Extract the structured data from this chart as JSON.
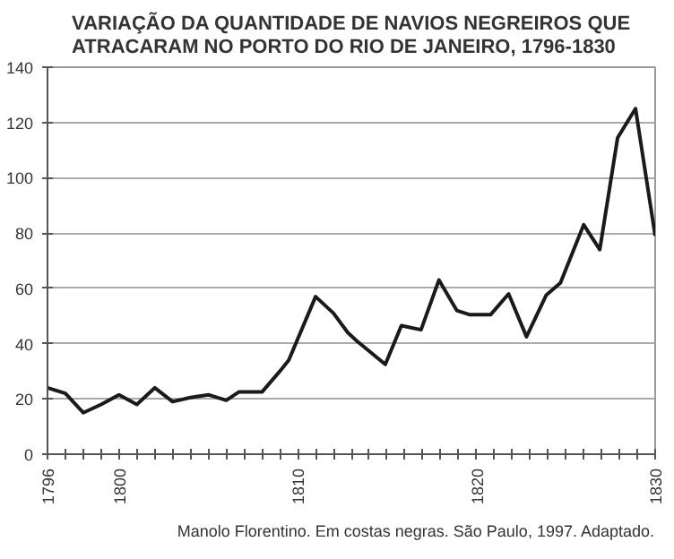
{
  "chart_data": {
    "type": "line",
    "title": "VARIAÇÃO DA QUANTIDADE DE NAVIOS NEGREIROS QUE\nATRACARAM NO PORTO DO RIO DE JANEIRO, 1796-1830",
    "x": [
      1796,
      1797,
      1798,
      1799,
      1800,
      1801,
      1802,
      1803,
      1804,
      1805,
      1806,
      1806.7,
      1808,
      1809,
      1809.5,
      1811,
      1812,
      1812.8,
      1813.3,
      1814.9,
      1815.8,
      1816.9,
      1817.9,
      1818.9,
      1819.6,
      1820.8,
      1821.8,
      1822.8,
      1823.9,
      1824.7,
      1826,
      1826.9,
      1827.9,
      1828.9,
      1830
    ],
    "series": [
      {
        "color": "#1a1a1a",
        "values": [
          24,
          22,
          15,
          18,
          21.5,
          18,
          24,
          19,
          20.5,
          21.5,
          19.5,
          22.5,
          22.5,
          30,
          34,
          57,
          51,
          44,
          41,
          32.5,
          46.5,
          45,
          63,
          52,
          50.5,
          50.5,
          58,
          42.5,
          57.5,
          62,
          83,
          74,
          114.5,
          125,
          79
        ]
      }
    ],
    "xlim": [
      1796,
      1830
    ],
    "ylim": [
      0,
      140
    ],
    "yticks": [
      0,
      20,
      40,
      60,
      80,
      100,
      120,
      140
    ],
    "xticks": [
      1796,
      {
        "value": 1797,
        "label": null
      },
      {
        "value": 1798,
        "label": null
      },
      {
        "value": 1799,
        "label": null
      },
      1800,
      {
        "value": 1801,
        "label": null
      },
      {
        "value": 1802,
        "label": null
      },
      {
        "value": 1803,
        "label": null
      },
      {
        "value": 1804,
        "label": null
      },
      {
        "value": 1805,
        "label": null
      },
      {
        "value": 1806,
        "label": null
      },
      {
        "value": 1807,
        "label": null
      },
      {
        "value": 1808,
        "label": null
      },
      {
        "value": 1809,
        "label": null
      },
      1810,
      {
        "value": 1811,
        "label": null
      },
      {
        "value": 1812,
        "label": null
      },
      {
        "value": 1813,
        "label": null
      },
      {
        "value": 1814,
        "label": null
      },
      {
        "value": 1815,
        "label": null
      },
      {
        "value": 1816,
        "label": null
      },
      {
        "value": 1817,
        "label": null
      },
      {
        "value": 1818,
        "label": null
      },
      {
        "value": 1819,
        "label": null
      },
      1820,
      {
        "value": 1821,
        "label": null
      },
      {
        "value": 1822,
        "label": null
      },
      {
        "value": 1823,
        "label": null
      },
      {
        "value": 1824,
        "label": null
      },
      {
        "value": 1825,
        "label": null
      },
      {
        "value": 1826,
        "label": null
      },
      {
        "value": 1827,
        "label": null
      },
      {
        "value": 1828,
        "label": null
      },
      {
        "value": 1829,
        "label": null
      },
      1830
    ],
    "grid": "y",
    "marker": "none",
    "line_style": "solid",
    "annotations": [
      "Manolo Florentino. Em costas negras. São Paulo, 1997. Adaptado."
    ]
  }
}
